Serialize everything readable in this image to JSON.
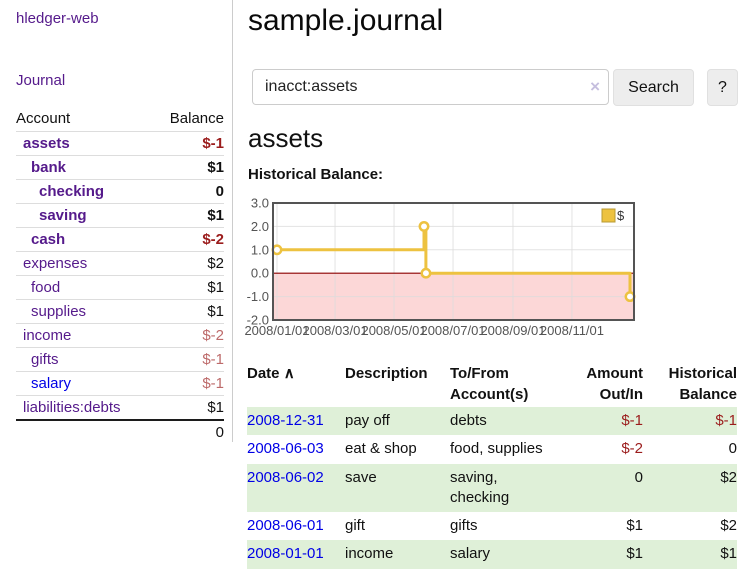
{
  "app": {
    "brand": "hledger-web"
  },
  "sidebar": {
    "journal_link": "Journal",
    "columns": {
      "account": "Account",
      "balance": "Balance"
    },
    "accounts": [
      {
        "name": "assets",
        "balance": "$-1",
        "level": 1,
        "bold": true,
        "amount_style": "neg",
        "link_style": "purple"
      },
      {
        "name": "bank",
        "balance": "$1",
        "level": 2,
        "bold": true,
        "amount_style": "pos",
        "link_style": "purple"
      },
      {
        "name": "checking",
        "balance": "0",
        "level": 3,
        "bold": true,
        "amount_style": "pos",
        "link_style": "purple"
      },
      {
        "name": "saving",
        "balance": "$1",
        "level": 3,
        "bold": true,
        "amount_style": "pos",
        "link_style": "purple"
      },
      {
        "name": "cash",
        "balance": "$-2",
        "level": 2,
        "bold": true,
        "amount_style": "neg",
        "link_style": "purple"
      },
      {
        "name": "expenses",
        "balance": "$2",
        "level": 1,
        "bold": false,
        "amount_style": "pos",
        "link_style": "purple"
      },
      {
        "name": "food",
        "balance": "$1",
        "level": 2,
        "bold": false,
        "amount_style": "pos",
        "link_style": "purple"
      },
      {
        "name": "supplies",
        "balance": "$1",
        "level": 2,
        "bold": false,
        "amount_style": "pos",
        "link_style": "purple"
      },
      {
        "name": "income",
        "balance": "$-2",
        "level": 1,
        "bold": false,
        "amount_style": "rose",
        "link_style": "purple"
      },
      {
        "name": "gifts",
        "balance": "$-1",
        "level": 2,
        "bold": false,
        "amount_style": "rose",
        "link_style": "purple"
      },
      {
        "name": "salary",
        "balance": "$-1",
        "level": 2,
        "bold": false,
        "amount_style": "rose",
        "link_style": "blue"
      },
      {
        "name": "liabilities:debts",
        "balance": "$1",
        "level": 1,
        "bold": false,
        "amount_style": "pos",
        "link_style": "purple"
      }
    ],
    "total": "0"
  },
  "header": {
    "title": "sample.journal"
  },
  "search": {
    "value": "inacct:assets",
    "clear_icon": "×",
    "search_label": "Search",
    "help_label": "?"
  },
  "account_page": {
    "heading": "assets",
    "chart_label": "Historical Balance:"
  },
  "chart_data": {
    "type": "line",
    "subtype": "step",
    "title": "Historical Balance",
    "series": [
      {
        "name": "$",
        "points": [
          [
            "2008-01-01",
            1
          ],
          [
            "2008-06-01",
            2
          ],
          [
            "2008-06-02",
            2
          ],
          [
            "2008-06-03",
            0
          ],
          [
            "2008-12-31",
            -1
          ]
        ]
      }
    ],
    "ylim": [
      -2,
      3
    ],
    "yticks": [
      {
        "label": "3.0",
        "value": 3
      },
      {
        "label": "2.0",
        "value": 2
      },
      {
        "label": "1.0",
        "value": 1
      },
      {
        "label": "0.0",
        "value": 0
      },
      {
        "label": "-1.0",
        "value": -1
      },
      {
        "label": "-2.0",
        "value": -2
      }
    ],
    "xticks": [
      {
        "label": "2008/01/01",
        "date": "2008-01-01"
      },
      {
        "label": "2008/03/01",
        "date": "2008-03-01"
      },
      {
        "label": "2008/05/01",
        "date": "2008-05-01"
      },
      {
        "label": "2008/07/01",
        "date": "2008-07-01"
      },
      {
        "label": "2008/09/01",
        "date": "2008-09-01"
      },
      {
        "label": "2008/11/01",
        "date": "2008-11-01"
      }
    ],
    "x_range": [
      "2008-01-01",
      "2008-12-31"
    ],
    "legend": {
      "label": "$",
      "position": "top-right"
    },
    "grid": true,
    "colors": {
      "line": "#edc240",
      "marker_fill": "#ffffff",
      "negative_fill": "#fcd7d7",
      "zero_line": "#8b0000",
      "border": "#545454",
      "grid": "#dcdcdc",
      "tick_text": "#545454"
    }
  },
  "register": {
    "columns": [
      {
        "label": "Date",
        "sort": "asc",
        "sort_icon": "∧"
      },
      {
        "label": "Description"
      },
      {
        "label": "To/From Account(s)"
      },
      {
        "label": "Amount Out/In"
      },
      {
        "label": "Historical Balance"
      }
    ],
    "rows": [
      {
        "date": "2008-12-31",
        "description": "pay off",
        "accounts": "debts",
        "amount": "$-1",
        "amount_style": "neg",
        "balance": "$-1",
        "balance_style": "neg",
        "shaded": true
      },
      {
        "date": "2008-06-03",
        "description": "eat & shop",
        "accounts": "food, supplies",
        "amount": "$-2",
        "amount_style": "neg",
        "balance": "0",
        "balance_style": "pos",
        "shaded": false
      },
      {
        "date": "2008-06-02",
        "description": "save",
        "accounts": "saving, checking",
        "amount": "0",
        "amount_style": "pos",
        "balance": "$2",
        "balance_style": "pos",
        "shaded": true
      },
      {
        "date": "2008-06-01",
        "description": "gift",
        "accounts": "gifts",
        "amount": "$1",
        "amount_style": "pos",
        "balance": "$2",
        "balance_style": "pos",
        "shaded": false
      },
      {
        "date": "2008-01-01",
        "description": "income",
        "accounts": "salary",
        "amount": "$1",
        "amount_style": "pos",
        "balance": "$1",
        "balance_style": "pos",
        "shaded": true
      }
    ]
  },
  "colors": {
    "link_purple": "#551a8b",
    "link_blue": "#0000e6",
    "neg_dark": "#9b1c1c",
    "neg_rose": "#bd6a6a",
    "row_green": "#dff0d8",
    "divider": "#cccccc"
  }
}
